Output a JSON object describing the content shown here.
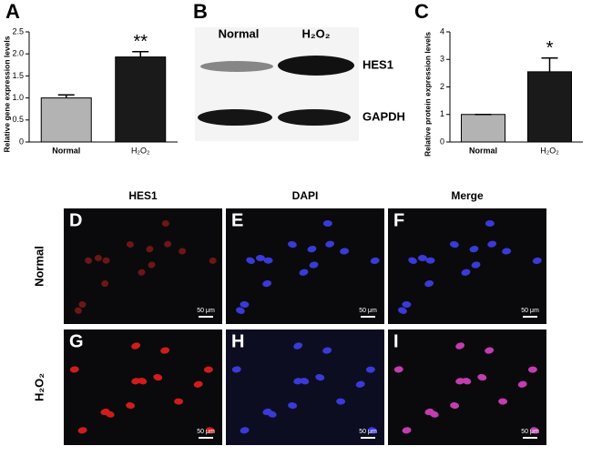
{
  "chart_data": [
    {
      "type": "bar",
      "panel": "A",
      "ylabel": "Relative gene expression levels",
      "categories": [
        "Normal",
        "H₂O₂"
      ],
      "values": [
        1.0,
        1.93
      ],
      "errors": [
        0.07,
        0.12
      ],
      "colors": [
        "#b3b3b3",
        "#1a1a1a"
      ],
      "annotations": [
        null,
        "**"
      ],
      "ylim": [
        0,
        2.5
      ],
      "yticks": [
        0,
        0.5,
        {
          "value": 1,
          "label": "1.0"
        },
        1.5,
        {
          "value": 2,
          "label": "2.0"
        },
        2.5
      ]
    },
    {
      "type": "bar",
      "panel": "C",
      "ylabel": "Relative protein expression levels",
      "categories": [
        "Normal",
        "H₂O₂"
      ],
      "values": [
        1.0,
        2.55
      ],
      "errors": [
        0,
        0.5
      ],
      "colors": [
        "#b3b3b3",
        "#1a1a1a"
      ],
      "annotations": [
        null,
        "*"
      ],
      "ylim": [
        0,
        4
      ],
      "yticks": [
        0,
        1,
        2,
        3,
        4
      ]
    }
  ],
  "blot": {
    "panel": "B",
    "columns": [
      "Normal",
      "H₂O₂"
    ],
    "rows": [
      "HES1",
      "GAPDH"
    ]
  },
  "micrographs": {
    "columns": [
      "HES1",
      "DAPI",
      "Merge"
    ],
    "rows": [
      "Normal",
      "H₂O₂"
    ],
    "panels": [
      [
        "D",
        "E",
        "F"
      ],
      [
        "G",
        "H",
        "I"
      ]
    ],
    "scale_bar": "50 μm"
  }
}
